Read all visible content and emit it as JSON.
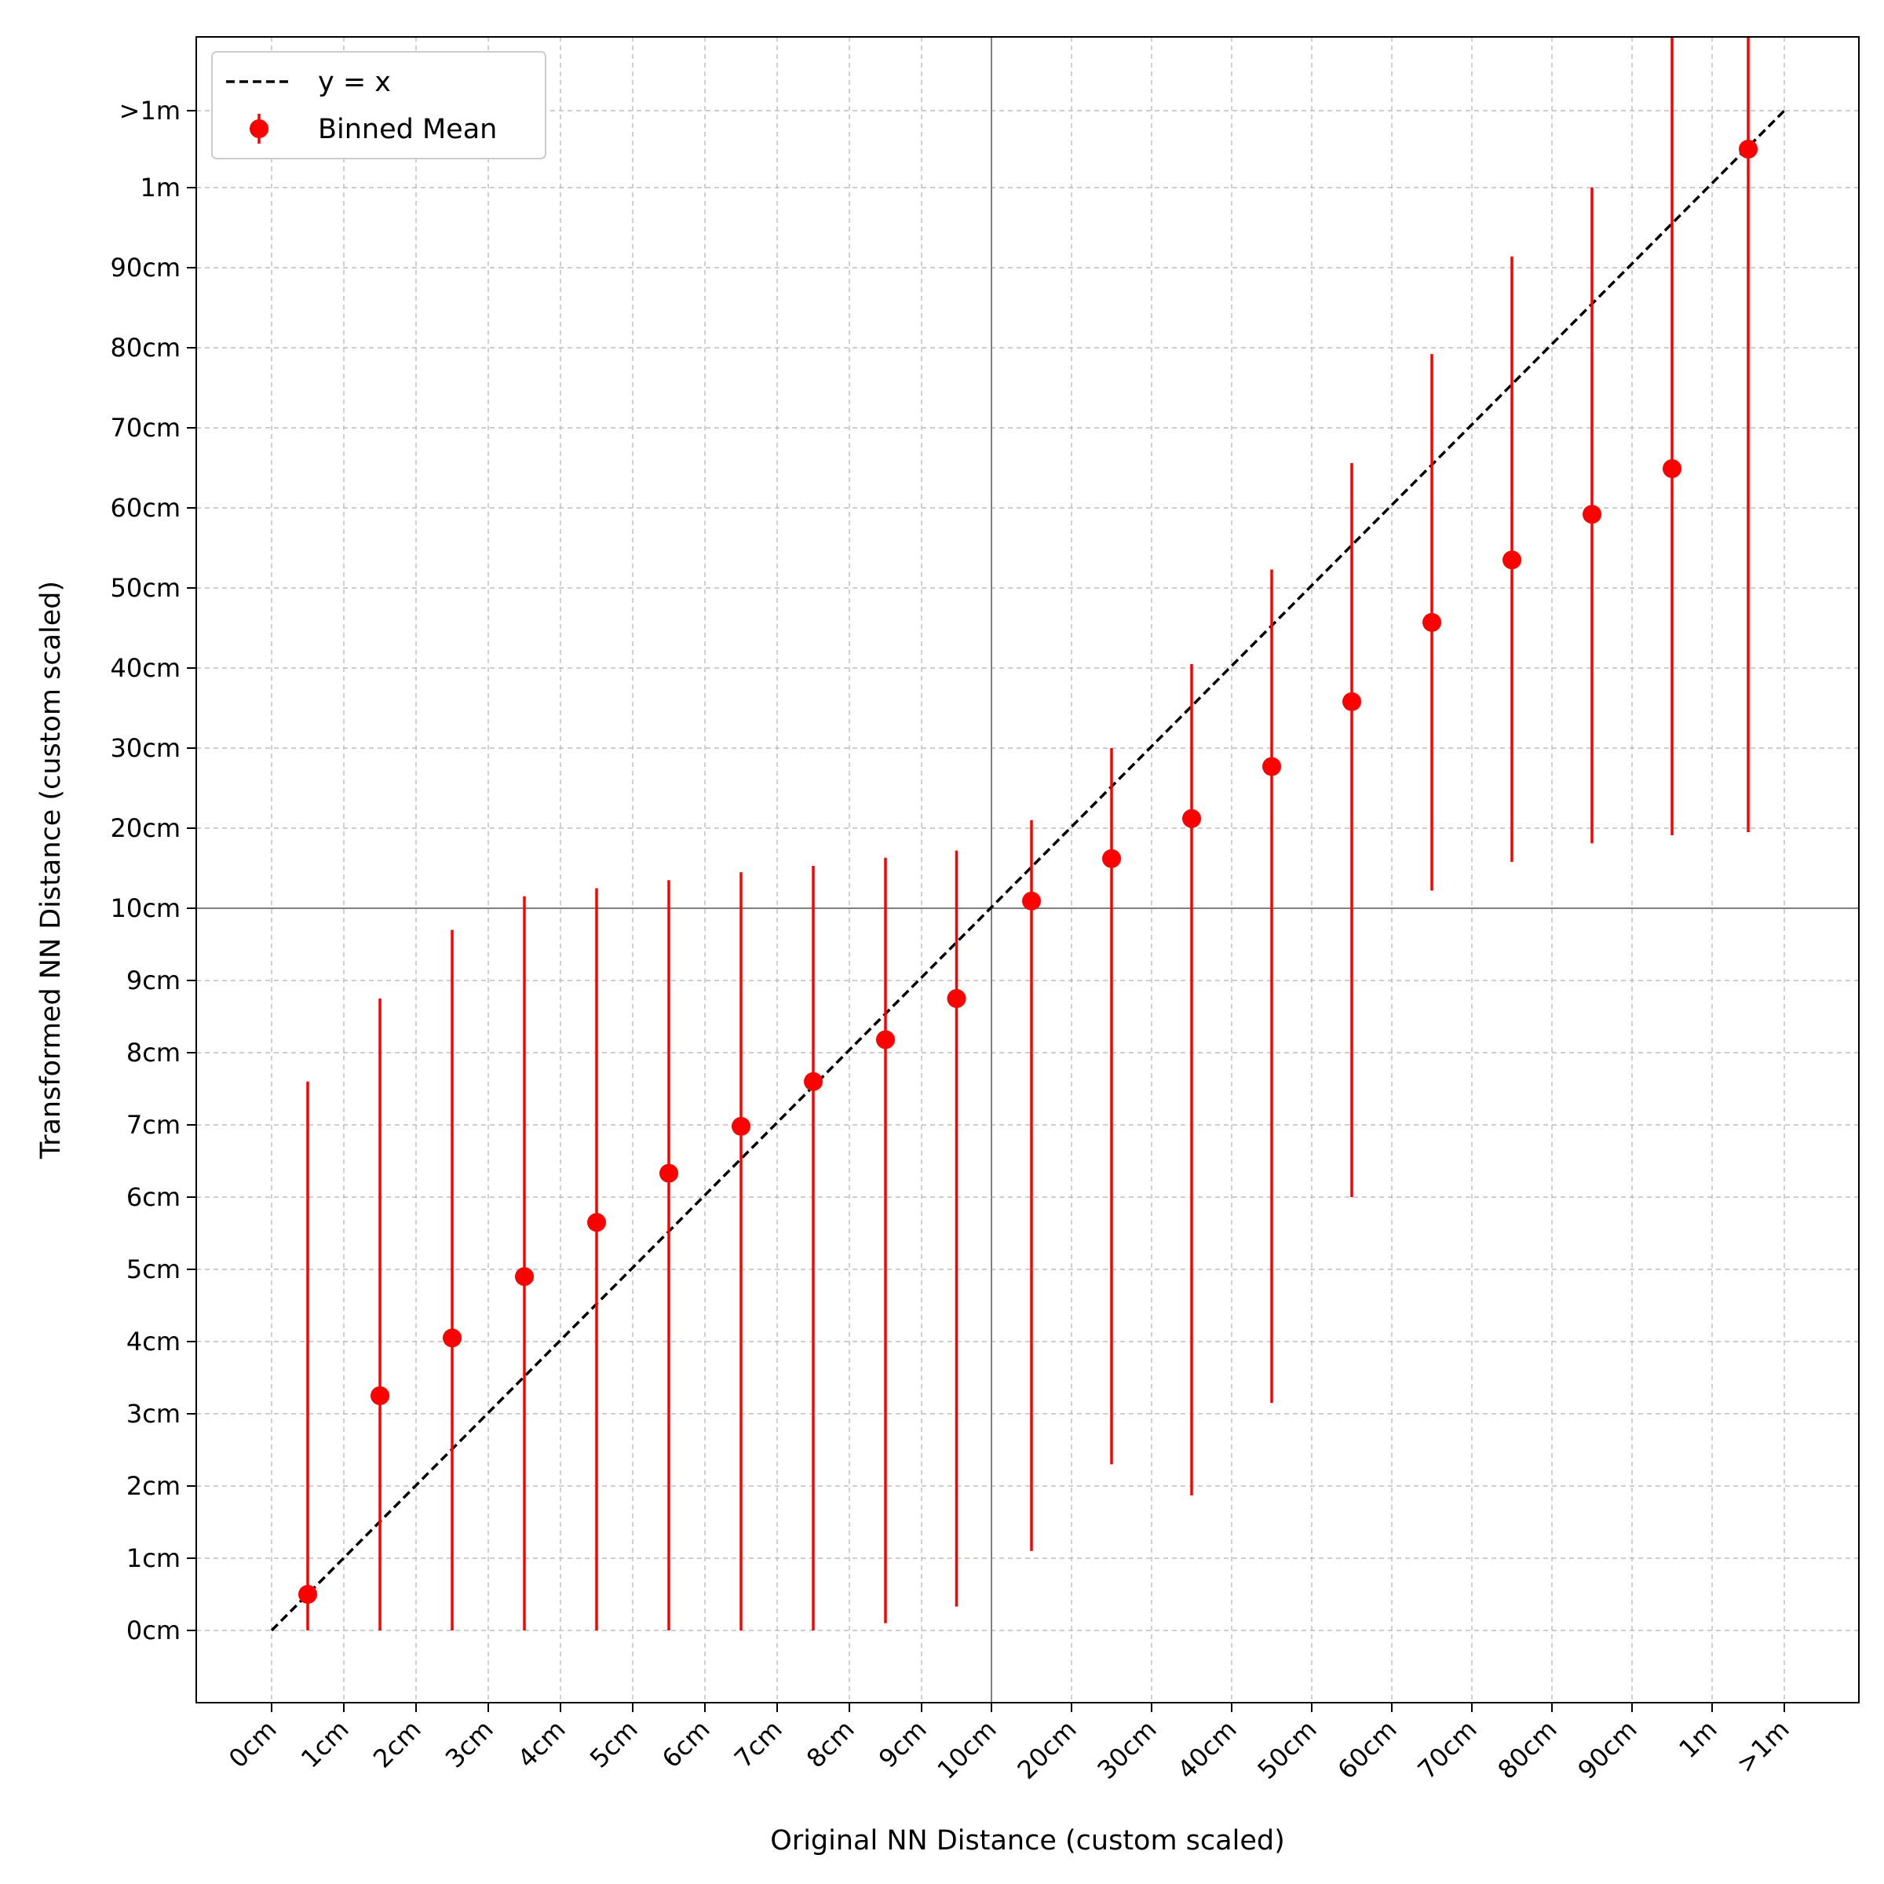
{
  "chart_data": {
    "type": "scatter",
    "xlabel": "Original NN Distance (custom scaled)",
    "ylabel": "Transformed NN Distance (custom scaled)",
    "x_ticks": [
      "0cm",
      "1cm",
      "2cm",
      "3cm",
      "4cm",
      "5cm",
      "6cm",
      "7cm",
      "8cm",
      "9cm",
      "10cm",
      "20cm",
      "30cm",
      "40cm",
      "50cm",
      "60cm",
      "70cm",
      "80cm",
      "90cm",
      "1m",
      ">1m"
    ],
    "y_ticks": [
      "0cm",
      "1cm",
      "2cm",
      "3cm",
      "4cm",
      "5cm",
      "6cm",
      "7cm",
      "8cm",
      "9cm",
      "10cm",
      "20cm",
      "30cm",
      "40cm",
      "50cm",
      "60cm",
      "70cm",
      "80cm",
      "90cm",
      "1m",
      ">1m"
    ],
    "scale_note": "custom piecewise scale: 0-10cm linear in 1cm steps, 10cm-1m linear in 10cm steps, then >1m",
    "grid": true,
    "reference_lines": [
      "10cm"
    ],
    "legend": {
      "position": "top-left",
      "entries": [
        "y = x",
        "Binned Mean"
      ]
    },
    "series": [
      {
        "name": "y = x",
        "style": "dashed",
        "color": "#000000",
        "x": [
          "0cm",
          ">1m"
        ],
        "y": [
          "0cm",
          ">1m"
        ]
      },
      {
        "name": "Binned Mean",
        "style": "errorbar",
        "color": "#ff0000",
        "points": [
          {
            "x_cm": 0.5,
            "y_cm": 0.5,
            "err_low_cm": 0.0,
            "err_high_cm": 7.6
          },
          {
            "x_cm": 1.5,
            "y_cm": 3.25,
            "err_low_cm": 0.0,
            "err_high_cm": 8.75
          },
          {
            "x_cm": 2.5,
            "y_cm": 4.05,
            "err_low_cm": 0.0,
            "err_high_cm": 9.7
          },
          {
            "x_cm": 3.5,
            "y_cm": 4.9,
            "err_low_cm": 0.0,
            "err_high_cm": 11.5
          },
          {
            "x_cm": 4.5,
            "y_cm": 5.65,
            "err_low_cm": 0.0,
            "err_high_cm": 12.5
          },
          {
            "x_cm": 5.5,
            "y_cm": 6.33,
            "err_low_cm": 0.0,
            "err_high_cm": 13.5
          },
          {
            "x_cm": 6.5,
            "y_cm": 6.98,
            "err_low_cm": 0.0,
            "err_high_cm": 14.5
          },
          {
            "x_cm": 7.5,
            "y_cm": 7.6,
            "err_low_cm": 0.0,
            "err_high_cm": 15.3
          },
          {
            "x_cm": 8.5,
            "y_cm": 8.18,
            "err_low_cm": 0.1,
            "err_high_cm": 16.3
          },
          {
            "x_cm": 9.5,
            "y_cm": 8.75,
            "err_low_cm": 0.33,
            "err_high_cm": 17.2
          },
          {
            "x_cm": 15,
            "y_cm": 10.9,
            "err_low_cm": 1.1,
            "err_high_cm": 21
          },
          {
            "x_cm": 25,
            "y_cm": 16.2,
            "err_low_cm": 2.3,
            "err_high_cm": 30
          },
          {
            "x_cm": 35,
            "y_cm": 21.2,
            "err_low_cm": 1.87,
            "err_high_cm": 40.5
          },
          {
            "x_cm": 45,
            "y_cm": 27.7,
            "err_low_cm": 3.15,
            "err_high_cm": 52.3
          },
          {
            "x_cm": 55,
            "y_cm": 35.8,
            "err_low_cm": 6.0,
            "err_high_cm": 65.6
          },
          {
            "x_cm": 65,
            "y_cm": 45.7,
            "err_low_cm": 12.2,
            "err_high_cm": 79.2
          },
          {
            "x_cm": 75,
            "y_cm": 53.5,
            "err_low_cm": 15.8,
            "err_high_cm": 91.4
          },
          {
            "x_cm": 85,
            "y_cm": 59.2,
            "err_low_cm": 18.1,
            "err_high_cm": 100.2
          },
          {
            "x_cm": 95,
            "y_cm": 64.9,
            "err_low_cm": 19.1,
            "err_high_cm": ">1m"
          },
          {
            "x_cm": ">1m_bin",
            "y_cm": ">1m_bin",
            "err_low_cm": 19.5,
            "err_high_cm": ">1m"
          }
        ]
      }
    ]
  }
}
